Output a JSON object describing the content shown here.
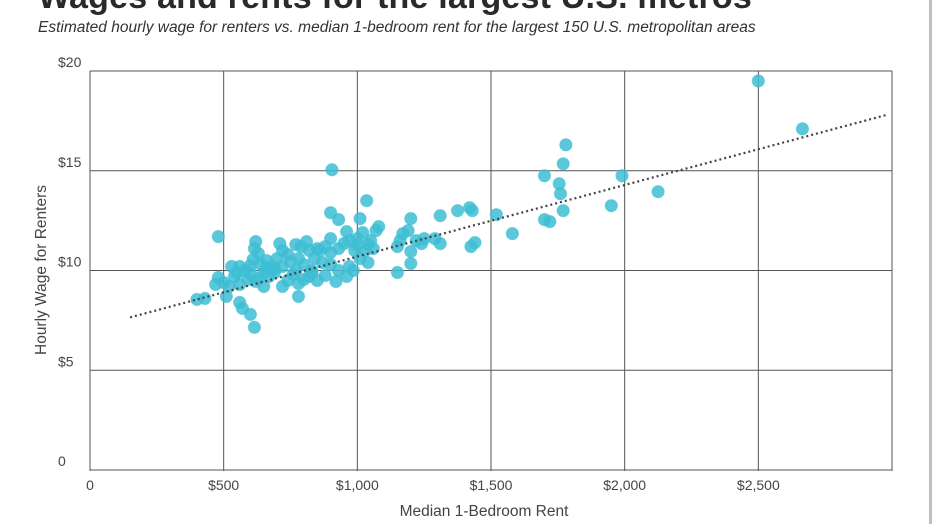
{
  "header": {
    "title": "Wages and rents for the largest U.S. metros",
    "subtitle": "Estimated hourly wage for renters vs. median 1-bedroom rent for the largest 150 U.S. metropolitan areas"
  },
  "chart_data": {
    "type": "scatter",
    "xlabel": "Median 1-Bedroom Rent",
    "ylabel": "Hourly Wage for Renters",
    "xlim": [
      0,
      3000
    ],
    "ylim": [
      0,
      20
    ],
    "x_ticks": [
      {
        "value": 0,
        "label": "0"
      },
      {
        "value": 500,
        "label": "$500"
      },
      {
        "value": 1000,
        "label": "$1,000"
      },
      {
        "value": 1500,
        "label": "$1,500"
      },
      {
        "value": 2000,
        "label": "$2,000"
      },
      {
        "value": 2500,
        "label": "$2,500"
      }
    ],
    "y_ticks": [
      {
        "value": 0,
        "label": "0"
      },
      {
        "value": 5,
        "label": "$5"
      },
      {
        "value": 10,
        "label": "$10"
      },
      {
        "value": 15,
        "label": "$15"
      },
      {
        "value": 20,
        "label": "$20"
      }
    ],
    "grid": true,
    "trendline": {
      "style": "dotted",
      "x": [
        150,
        2980
      ],
      "y": [
        7.65,
        17.8
      ]
    },
    "colors": {
      "points": "#3dbdd3",
      "grid": "#555555",
      "trendline": "#444444"
    },
    "points": [
      [
        2500,
        19.5
      ],
      [
        2665,
        17.1
      ],
      [
        1780,
        16.3
      ],
      [
        1770,
        15.35
      ],
      [
        1700,
        14.75
      ],
      [
        1755,
        14.35
      ],
      [
        1760,
        13.85
      ],
      [
        1990,
        14.75
      ],
      [
        2125,
        13.95
      ],
      [
        1950,
        13.25
      ],
      [
        1770,
        13.0
      ],
      [
        1700,
        12.55
      ],
      [
        1720,
        12.45
      ],
      [
        1520,
        12.8
      ],
      [
        1580,
        11.85
      ],
      [
        1420,
        13.15
      ],
      [
        1430,
        13.0
      ],
      [
        1375,
        13.0
      ],
      [
        1310,
        12.75
      ],
      [
        1440,
        11.4
      ],
      [
        1425,
        11.2
      ],
      [
        1310,
        11.35
      ],
      [
        1290,
        11.6
      ],
      [
        1250,
        11.6
      ],
      [
        1240,
        11.35
      ],
      [
        1220,
        11.5
      ],
      [
        1200,
        12.6
      ],
      [
        1190,
        12.0
      ],
      [
        1170,
        11.85
      ],
      [
        1160,
        11.5
      ],
      [
        1150,
        11.2
      ],
      [
        1200,
        10.95
      ],
      [
        1200,
        10.35
      ],
      [
        1150,
        9.9
      ],
      [
        1080,
        12.2
      ],
      [
        1070,
        12.0
      ],
      [
        1050,
        11.5
      ],
      [
        1035,
        13.5
      ],
      [
        1010,
        12.6
      ],
      [
        1020,
        11.9
      ],
      [
        1000,
        11.6
      ],
      [
        1040,
        11.3
      ],
      [
        1030,
        11.0
      ],
      [
        1060,
        11.1
      ],
      [
        1000,
        11.3
      ],
      [
        990,
        11.0
      ],
      [
        1010,
        10.6
      ],
      [
        1040,
        10.4
      ],
      [
        985,
        10.0
      ],
      [
        905,
        15.05
      ],
      [
        900,
        12.9
      ],
      [
        930,
        12.55
      ],
      [
        900,
        11.6
      ],
      [
        960,
        11.95
      ],
      [
        970,
        11.5
      ],
      [
        950,
        11.35
      ],
      [
        930,
        11.1
      ],
      [
        900,
        10.9
      ],
      [
        880,
        11.2
      ],
      [
        850,
        11.1
      ],
      [
        820,
        11.0
      ],
      [
        840,
        10.6
      ],
      [
        870,
        10.4
      ],
      [
        900,
        10.3
      ],
      [
        930,
        10.0
      ],
      [
        970,
        10.2
      ],
      [
        960,
        9.7
      ],
      [
        920,
        9.45
      ],
      [
        880,
        9.75
      ],
      [
        850,
        9.5
      ],
      [
        820,
        9.7
      ],
      [
        830,
        10.0
      ],
      [
        800,
        10.3
      ],
      [
        780,
        10.6
      ],
      [
        790,
        11.2
      ],
      [
        770,
        11.3
      ],
      [
        740,
        10.8
      ],
      [
        720,
        11.0
      ],
      [
        710,
        11.35
      ],
      [
        700,
        10.6
      ],
      [
        690,
        10.1
      ],
      [
        720,
        10.2
      ],
      [
        750,
        10.45
      ],
      [
        770,
        10.0
      ],
      [
        760,
        9.8
      ],
      [
        740,
        9.5
      ],
      [
        720,
        9.2
      ],
      [
        780,
        9.35
      ],
      [
        800,
        9.55
      ],
      [
        780,
        8.7
      ],
      [
        620,
        11.45
      ],
      [
        615,
        11.1
      ],
      [
        630,
        10.85
      ],
      [
        610,
        10.55
      ],
      [
        600,
        10.25
      ],
      [
        640,
        10.3
      ],
      [
        660,
        10.5
      ],
      [
        680,
        10.2
      ],
      [
        650,
        9.9
      ],
      [
        670,
        9.7
      ],
      [
        630,
        9.6
      ],
      [
        600,
        9.85
      ],
      [
        580,
        10.0
      ],
      [
        560,
        10.2
      ],
      [
        550,
        9.9
      ],
      [
        540,
        9.7
      ],
      [
        560,
        9.3
      ],
      [
        590,
        9.55
      ],
      [
        620,
        9.45
      ],
      [
        650,
        9.2
      ],
      [
        520,
        9.2
      ],
      [
        500,
        9.4
      ],
      [
        480,
        9.65
      ],
      [
        470,
        9.3
      ],
      [
        530,
        10.2
      ],
      [
        480,
        11.7
      ],
      [
        430,
        8.6
      ],
      [
        510,
        8.7
      ],
      [
        560,
        8.4
      ],
      [
        570,
        8.1
      ],
      [
        600,
        7.8
      ],
      [
        615,
        7.15
      ],
      [
        400,
        8.55
      ],
      [
        660,
        10.1
      ],
      [
        690,
        9.9
      ],
      [
        810,
        11.45
      ],
      [
        860,
        11.0
      ],
      [
        830,
        9.9
      ]
    ]
  }
}
